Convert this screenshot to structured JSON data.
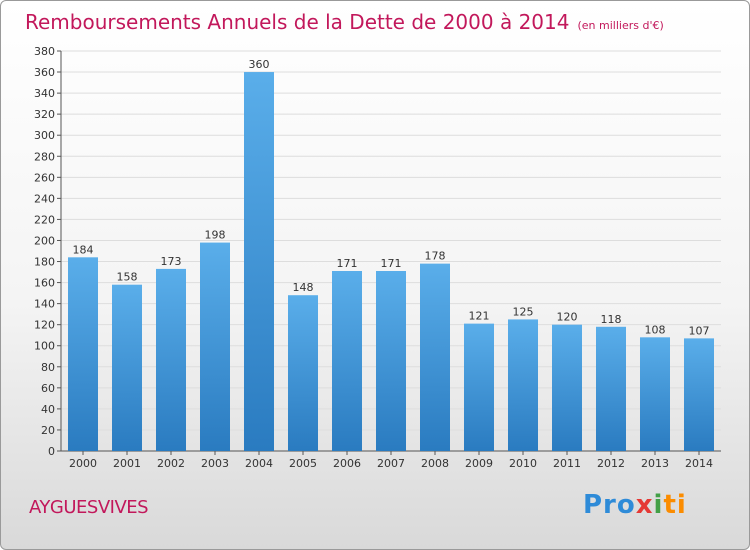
{
  "title": "Remboursements Annuels de la Dette de 2000 à 2014",
  "unit": "(en milliers d'€)",
  "commune": "AYGUESVIVES",
  "logo": {
    "p1": "Pro",
    "p2": "x",
    "p3": "i",
    "p4": "ti"
  },
  "colors": {
    "title": "#c2185b",
    "bar_top": "#5aaeea",
    "bar_bottom": "#2a7bc0",
    "grid": "#dddddd"
  },
  "chart_data": {
    "type": "bar",
    "categories": [
      "2000",
      "2001",
      "2002",
      "2003",
      "2004",
      "2005",
      "2006",
      "2007",
      "2008",
      "2009",
      "2010",
      "2011",
      "2012",
      "2013",
      "2014"
    ],
    "values": [
      184,
      158,
      173,
      198,
      360,
      148,
      171,
      171,
      178,
      121,
      125,
      120,
      118,
      108,
      107
    ],
    "ylim": [
      0,
      380
    ],
    "ytick_step": 20,
    "grid": true
  }
}
